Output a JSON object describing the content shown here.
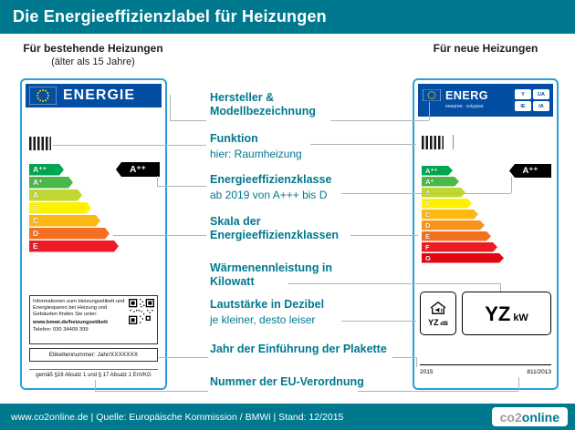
{
  "header": {
    "title": "Die Energieeffizienzlabel für Heizungen"
  },
  "sections": {
    "left_heading": "Für bestehende Heizungen",
    "left_subheading": "(älter als 15 Jahre)",
    "right_heading": "Für neue Heizungen"
  },
  "left_label": {
    "brand": "ENERGIE",
    "classes": [
      "A⁺⁺",
      "A⁺",
      "A",
      "B",
      "C",
      "D",
      "E"
    ],
    "class_colors": [
      "#00a651",
      "#4cb848",
      "#bfd730",
      "#fff200",
      "#fdb913",
      "#f37021",
      "#ed1c24"
    ],
    "indicator": "A⁺⁺",
    "info_box": {
      "text": "Informationen zum Heizungsetikett und Energiesparen bei Heizung und Gebäuden finden Sie unter:",
      "url": "www.bmwi.de/heizungsetikett",
      "phone": "Telefon: 030 34409 399"
    },
    "etikett_number": "Etikettennummer: Jahr/XXXXXXX",
    "legal": "gemäß §16 Absatz 1 und § 17 Absatz 1 EnVKG"
  },
  "right_label": {
    "brand": "ENERG",
    "brand_sub": "енергия · ενέργεια",
    "badges": [
      "Y",
      "UA",
      "IE",
      "IA"
    ],
    "classes": [
      "A⁺⁺",
      "A⁺",
      "A",
      "B",
      "C",
      "D",
      "E",
      "F",
      "G"
    ],
    "class_colors": [
      "#00a651",
      "#4cb848",
      "#bfd730",
      "#fff200",
      "#fdb913",
      "#f7941d",
      "#f37021",
      "#ed1c24",
      "#e30613"
    ],
    "indicator": "A⁺⁺",
    "db_value": "YZ",
    "db_unit": "dB",
    "kw_value": "YZ",
    "kw_unit": "kW",
    "year": "2015",
    "regulation": "811/2013"
  },
  "annotations": [
    {
      "title": "Hersteller & Modellbezeichnung"
    },
    {
      "title": "Funktion",
      "subtitle": "hier: Raumheizung"
    },
    {
      "title": "Energieeffizienzklasse",
      "subtitle": "ab 2019 von A+++ bis D"
    },
    {
      "title": "Skala der Energieeffizienzklassen"
    },
    {
      "title": "Wärmenennleistung in Kilowatt"
    },
    {
      "title": "Lautstärke in Dezibel",
      "subtitle": "je kleiner, desto leiser"
    },
    {
      "title": "Jahr der Einführung der Plakette"
    },
    {
      "title": "Nummer der EU-Verordnung"
    }
  ],
  "footer": {
    "text": "www.co2online.de | Quelle: Europäische Kommission / BMWi | Stand: 12/2015",
    "logo": {
      "part1": "co2",
      "part2": "online"
    }
  },
  "colors": {
    "teal": "#00798f",
    "label_border": "#2b9fd6",
    "eu_blue": "#034ea2"
  }
}
